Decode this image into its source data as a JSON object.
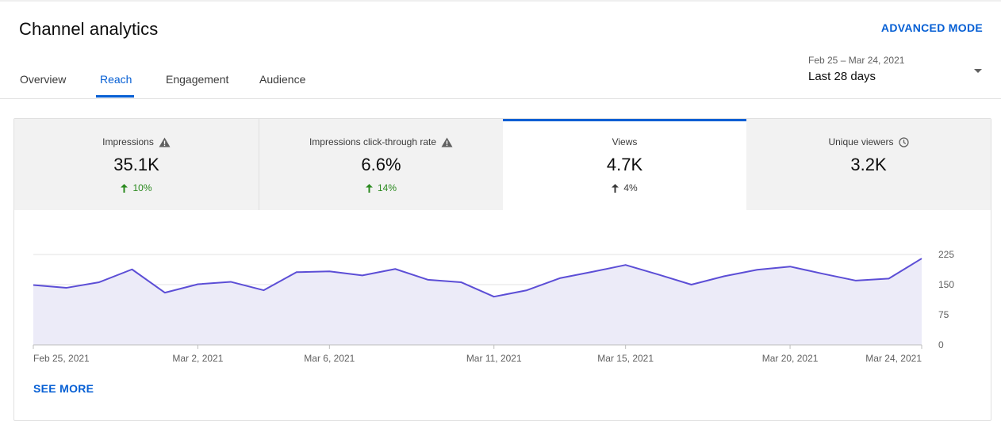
{
  "header": {
    "title": "Channel analytics",
    "advanced_mode": "ADVANCED MODE"
  },
  "tabs": [
    {
      "label": "Overview",
      "active": false
    },
    {
      "label": "Reach",
      "active": true
    },
    {
      "label": "Engagement",
      "active": false
    },
    {
      "label": "Audience",
      "active": false
    }
  ],
  "date_range": {
    "dates": "Feb 25 – Mar 24, 2021",
    "label": "Last 28 days"
  },
  "metrics": [
    {
      "label": "Impressions",
      "value": "35.1K",
      "delta": "10%",
      "icon": "warning-icon",
      "delta_color": "#2b8a1f",
      "selected": false
    },
    {
      "label": "Impressions click-through rate",
      "value": "6.6%",
      "delta": "14%",
      "icon": "warning-icon",
      "delta_color": "#2b8a1f",
      "selected": false
    },
    {
      "label": "Views",
      "value": "4.7K",
      "delta": "4%",
      "icon": "",
      "delta_color": "#3a3a3a",
      "selected": true
    },
    {
      "label": "Unique viewers",
      "value": "3.2K",
      "delta": "",
      "icon": "clock-icon",
      "delta_color": "",
      "selected": false
    }
  ],
  "chart_data": {
    "type": "area",
    "series": [
      {
        "values": [
          149,
          142,
          156,
          188,
          130,
          151,
          157,
          136,
          181,
          183,
          173,
          189,
          162,
          156,
          120,
          136,
          166,
          182,
          199,
          175,
          150,
          171,
          187,
          195,
          177,
          160,
          165,
          215
        ]
      }
    ],
    "x_tick_labels": [
      "Feb 25, 2021",
      "Mar 2, 2021",
      "Mar 6, 2021",
      "Mar 11, 2021",
      "Mar 15, 2021",
      "Mar 20, 2021",
      "Mar 24, 2021"
    ],
    "x_tick_indices": [
      0,
      5,
      9,
      14,
      18,
      23,
      27
    ],
    "y_ticks": [
      0,
      75,
      150,
      225
    ],
    "ylim": [
      0,
      225
    ],
    "grid": true,
    "line_color": "#5c4ed6",
    "fill_color": "#ecebf8"
  },
  "see_more": "SEE MORE"
}
